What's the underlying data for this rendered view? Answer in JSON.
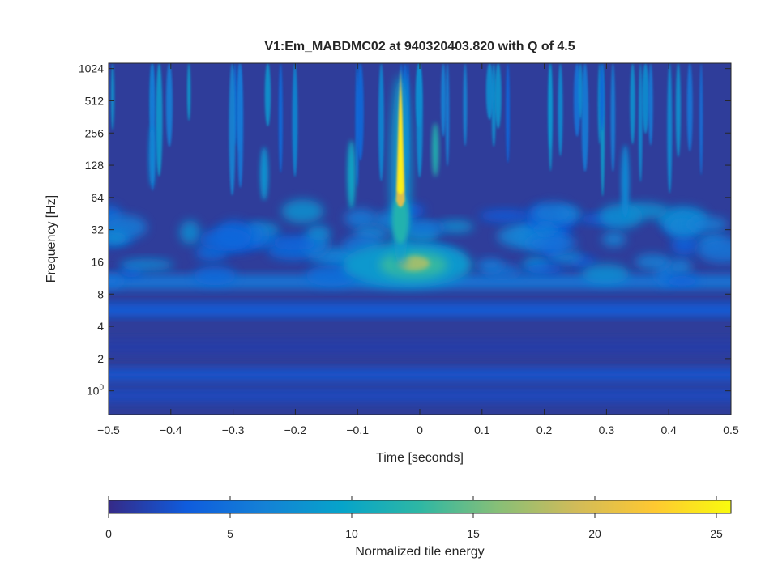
{
  "chart_data": {
    "type": "heatmap",
    "title": "V1:Em_MABDMC02 at 940320403.820 with Q of 4.5",
    "xlabel": "Time [seconds]",
    "ylabel": "Frequency [Hz]",
    "xlim": [
      -0.5,
      0.5
    ],
    "ylim_hz": [
      0.6,
      1150
    ],
    "y_scale": "log2",
    "x_ticks": [
      -0.5,
      -0.4,
      -0.3,
      -0.2,
      -0.1,
      0,
      0.1,
      0.2,
      0.3,
      0.4,
      0.5
    ],
    "x_tick_labels": [
      "−0.5",
      "−0.4",
      "−0.3",
      "−0.2",
      "−0.1",
      "0",
      "0.1",
      "0.2",
      "0.3",
      "0.4",
      "0.5"
    ],
    "y_ticks": [
      1,
      2,
      4,
      8,
      16,
      32,
      64,
      128,
      256,
      512,
      1024
    ],
    "y_tick_labels": [
      "10^0",
      "2",
      "4",
      "8",
      "16",
      "32",
      "64",
      "128",
      "256",
      "512",
      "1024"
    ],
    "colorbar": {
      "label": "Normalized tile energy",
      "range": [
        0,
        25.6
      ],
      "ticks": [
        0,
        5,
        10,
        15,
        20,
        25
      ],
      "tick_labels": [
        "0",
        "5",
        "10",
        "15",
        "20",
        "25"
      ],
      "colormap": [
        "#352a87",
        "#0f5cdd",
        "#1481d6",
        "#06a4ca",
        "#2eb7a4",
        "#87bf77",
        "#d1bb59",
        "#fec832",
        "#f9fb0e"
      ]
    },
    "features": [
      {
        "description": "main glitch spike",
        "t": -0.03,
        "f_hz_range": [
          40,
          1024
        ],
        "peak_energy": 25
      },
      {
        "description": "low-frequency blob",
        "t": -0.01,
        "f_hz": 15,
        "peak_energy": 17
      },
      {
        "description": "secondary spike",
        "t": 0.025,
        "f_hz_range": [
          100,
          300
        ],
        "peak_energy": 12
      },
      {
        "description": "spike",
        "t": -0.11,
        "f_hz_range": [
          50,
          200
        ],
        "peak_energy": 10
      }
    ],
    "grid": false
  }
}
